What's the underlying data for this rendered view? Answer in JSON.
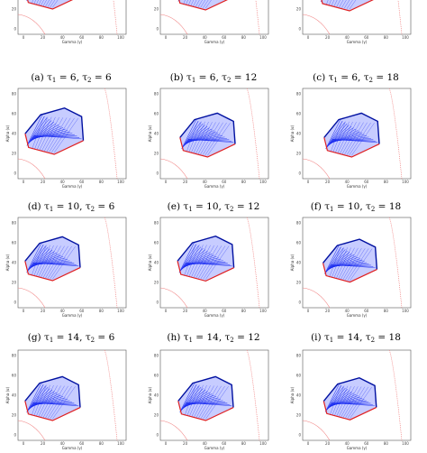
{
  "figure": {
    "xlabel": "Gamma (γ)",
    "ylabel": "Alpha (α)",
    "x_ticks": [
      "0",
      "20",
      "40",
      "60",
      "80",
      "100"
    ],
    "y_ticks": [
      "80",
      "60",
      "40",
      "20",
      "0"
    ],
    "colors": {
      "fill": "#1a2cf0",
      "boundary": "#e02020",
      "curve": "#f08080"
    }
  },
  "captions": [
    {
      "id": "a",
      "letter": "(a)",
      "t1": "6",
      "t2": "6"
    },
    {
      "id": "b",
      "letter": "(b)",
      "t1": "6",
      "t2": "12"
    },
    {
      "id": "c",
      "letter": "(c)",
      "t1": "6",
      "t2": "18"
    },
    {
      "id": "d",
      "letter": "(d)",
      "t1": "10",
      "t2": "6"
    },
    {
      "id": "e",
      "letter": "(e)",
      "t1": "10",
      "t2": "12"
    },
    {
      "id": "f",
      "letter": "(f)",
      "t1": "10",
      "t2": "18"
    },
    {
      "id": "g",
      "letter": "(g)",
      "t1": "14",
      "t2": "6"
    },
    {
      "id": "h",
      "letter": "(h)",
      "t1": "14",
      "t2": "12"
    },
    {
      "id": "i",
      "letter": "(i)",
      "t1": "14",
      "t2": "18"
    }
  ]
}
